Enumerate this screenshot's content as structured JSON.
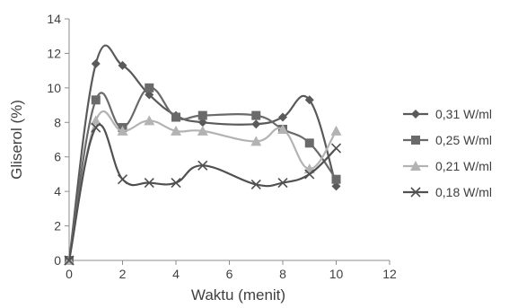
{
  "chart_data": {
    "type": "line",
    "xlabel": "Waktu (menit)",
    "ylabel": "Gliserol (%)",
    "xlim": [
      0,
      12
    ],
    "ylim": [
      0,
      14
    ],
    "xticks": [
      0,
      2,
      4,
      6,
      8,
      10,
      12
    ],
    "yticks": [
      0,
      2,
      4,
      6,
      8,
      10,
      12,
      14
    ],
    "grid": false,
    "legend_position": "right",
    "series": [
      {
        "name": "0,31 W/ml",
        "marker": "diamond",
        "color": "#5a5a5a",
        "x": [
          0,
          1,
          2,
          3,
          4,
          5,
          7,
          8,
          9,
          10
        ],
        "y": [
          0,
          11.4,
          11.3,
          9.6,
          8.4,
          8.0,
          7.9,
          8.3,
          9.3,
          4.3
        ]
      },
      {
        "name": "0,25 W/ml",
        "marker": "square",
        "color": "#6a6a6a",
        "x": [
          0,
          1,
          2,
          3,
          4,
          5,
          7,
          8,
          9,
          10
        ],
        "y": [
          0,
          9.3,
          7.7,
          10.0,
          8.3,
          8.4,
          8.4,
          7.6,
          6.8,
          4.7
        ]
      },
      {
        "name": "0,21 W/ml",
        "marker": "triangle",
        "color": "#b3b3b3",
        "x": [
          0,
          1,
          2,
          3,
          4,
          5,
          7,
          8,
          9,
          10
        ],
        "y": [
          0,
          8.1,
          7.5,
          8.1,
          7.5,
          7.5,
          6.9,
          7.6,
          5.3,
          7.5
        ]
      },
      {
        "name": "0,18 W/ml",
        "marker": "x",
        "color": "#505050",
        "x": [
          0,
          1,
          2,
          3,
          4,
          5,
          7,
          8,
          9,
          10
        ],
        "y": [
          0,
          7.7,
          4.7,
          4.5,
          4.5,
          5.5,
          4.4,
          4.5,
          5.0,
          6.5
        ]
      }
    ]
  }
}
